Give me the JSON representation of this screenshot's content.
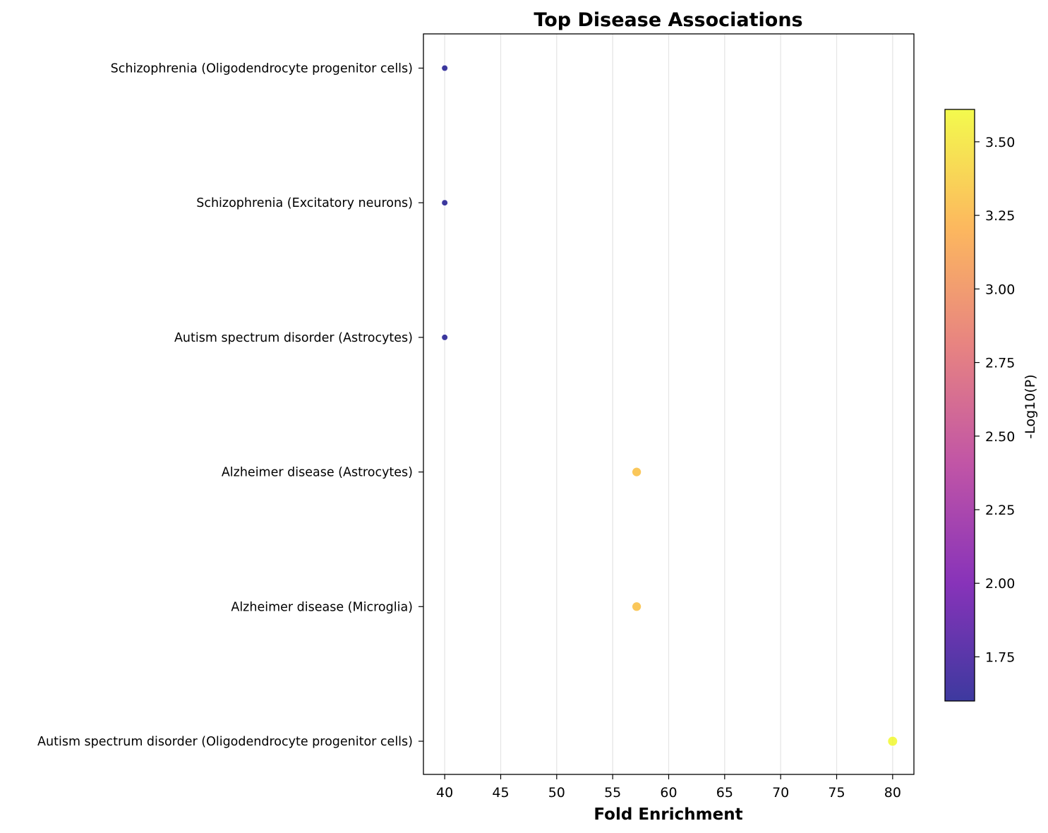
{
  "chart_data": {
    "type": "scatter",
    "title": "Top Disease Associations",
    "xlabel": "Fold Enrichment",
    "ylabel": "",
    "xlim": [
      38.1,
      81.9
    ],
    "xticks": [
      40,
      45,
      50,
      55,
      60,
      65,
      70,
      75,
      80
    ],
    "grid": "vertical",
    "points": [
      {
        "label": "Schizophrenia (Oligodendrocyte progenitor cells)",
        "x": 40.0,
        "neg_log10_p": 1.6
      },
      {
        "label": "Schizophrenia (Excitatory neurons)",
        "x": 40.0,
        "neg_log10_p": 1.6
      },
      {
        "label": "Autism spectrum disorder (Astrocytes)",
        "x": 40.0,
        "neg_log10_p": 1.6
      },
      {
        "label": "Alzheimer disease (Astrocytes)",
        "x": 57.14,
        "neg_log10_p": 3.3
      },
      {
        "label": "Alzheimer disease (Microglia)",
        "x": 57.14,
        "neg_log10_p": 3.3
      },
      {
        "label": "Autism spectrum disorder (Oligodendrocyte progenitor cells)",
        "x": 80.0,
        "neg_log10_p": 3.6
      }
    ],
    "colorbar": {
      "label": "-Log10(P)",
      "colormap": "plasma",
      "range": [
        1.6,
        3.61
      ],
      "ticks": [
        "1.75",
        "2.00",
        "2.25",
        "2.50",
        "2.75",
        "3.00",
        "3.25",
        "3.50"
      ]
    }
  },
  "colors": {
    "gridline": "#e6e6e6",
    "axis": "#000000",
    "plasma": [
      "#0d0887",
      "#6a00a8",
      "#b12a90",
      "#e16462",
      "#fca636",
      "#f0f921"
    ]
  }
}
